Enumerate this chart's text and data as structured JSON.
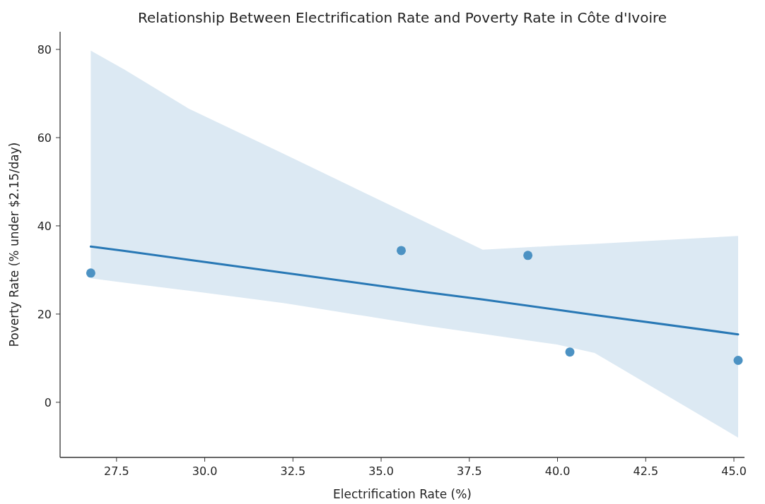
{
  "chart_data": {
    "type": "scatter",
    "title": "Relationship Between Electrification Rate and Poverty Rate in Côte d'Ivoire",
    "xlabel": "Electrification Rate (%)",
    "ylabel": "Poverty Rate (% under $2.15/day)",
    "xlim": [
      25.9,
      45.3
    ],
    "xticks": [
      {
        "value": 27.5,
        "label": "27.5"
      },
      {
        "value": 30,
        "label": "30.0"
      },
      {
        "value": 32.5,
        "label": "32.5"
      },
      {
        "value": 35,
        "label": "35.0"
      },
      {
        "value": 37.5,
        "label": "37.5"
      },
      {
        "value": 40,
        "label": "40.0"
      },
      {
        "value": 42.5,
        "label": "42.5"
      },
      {
        "value": 45,
        "label": "45.0"
      }
    ],
    "ylim": [
      -12.5,
      84
    ],
    "yticks": [
      0,
      20,
      40,
      60,
      80
    ],
    "grid": false,
    "series": [
      {
        "marker": "circle",
        "color": "#4c92c3",
        "x": [
          26.77,
          35.57,
          39.16,
          40.35,
          45.12
        ],
        "values": [
          29.3,
          34.4,
          33.3,
          11.4,
          9.5
        ]
      },
      {
        "type": "line",
        "color": "#2878b5",
        "line_style": "solid",
        "x": [
          26.77,
          27.73,
          29.54,
          32.22,
          32.48,
          36.24,
          37.88,
          39.98,
          41.05,
          45.12
        ],
        "values": [
          35.3,
          34.3,
          32.3,
          29.4,
          29.1,
          25.0,
          23.3,
          21.0,
          19.8,
          15.4
        ],
        "lower": [
          28.1,
          27.1,
          25.3,
          22.5,
          22.2,
          17.4,
          15.5,
          13.1,
          11.2,
          -8.0
        ],
        "upper": [
          79.7,
          75.4,
          66.6,
          56.4,
          55.4,
          40.9,
          34.6,
          35.5,
          35.9,
          37.7
        ]
      }
    ]
  }
}
